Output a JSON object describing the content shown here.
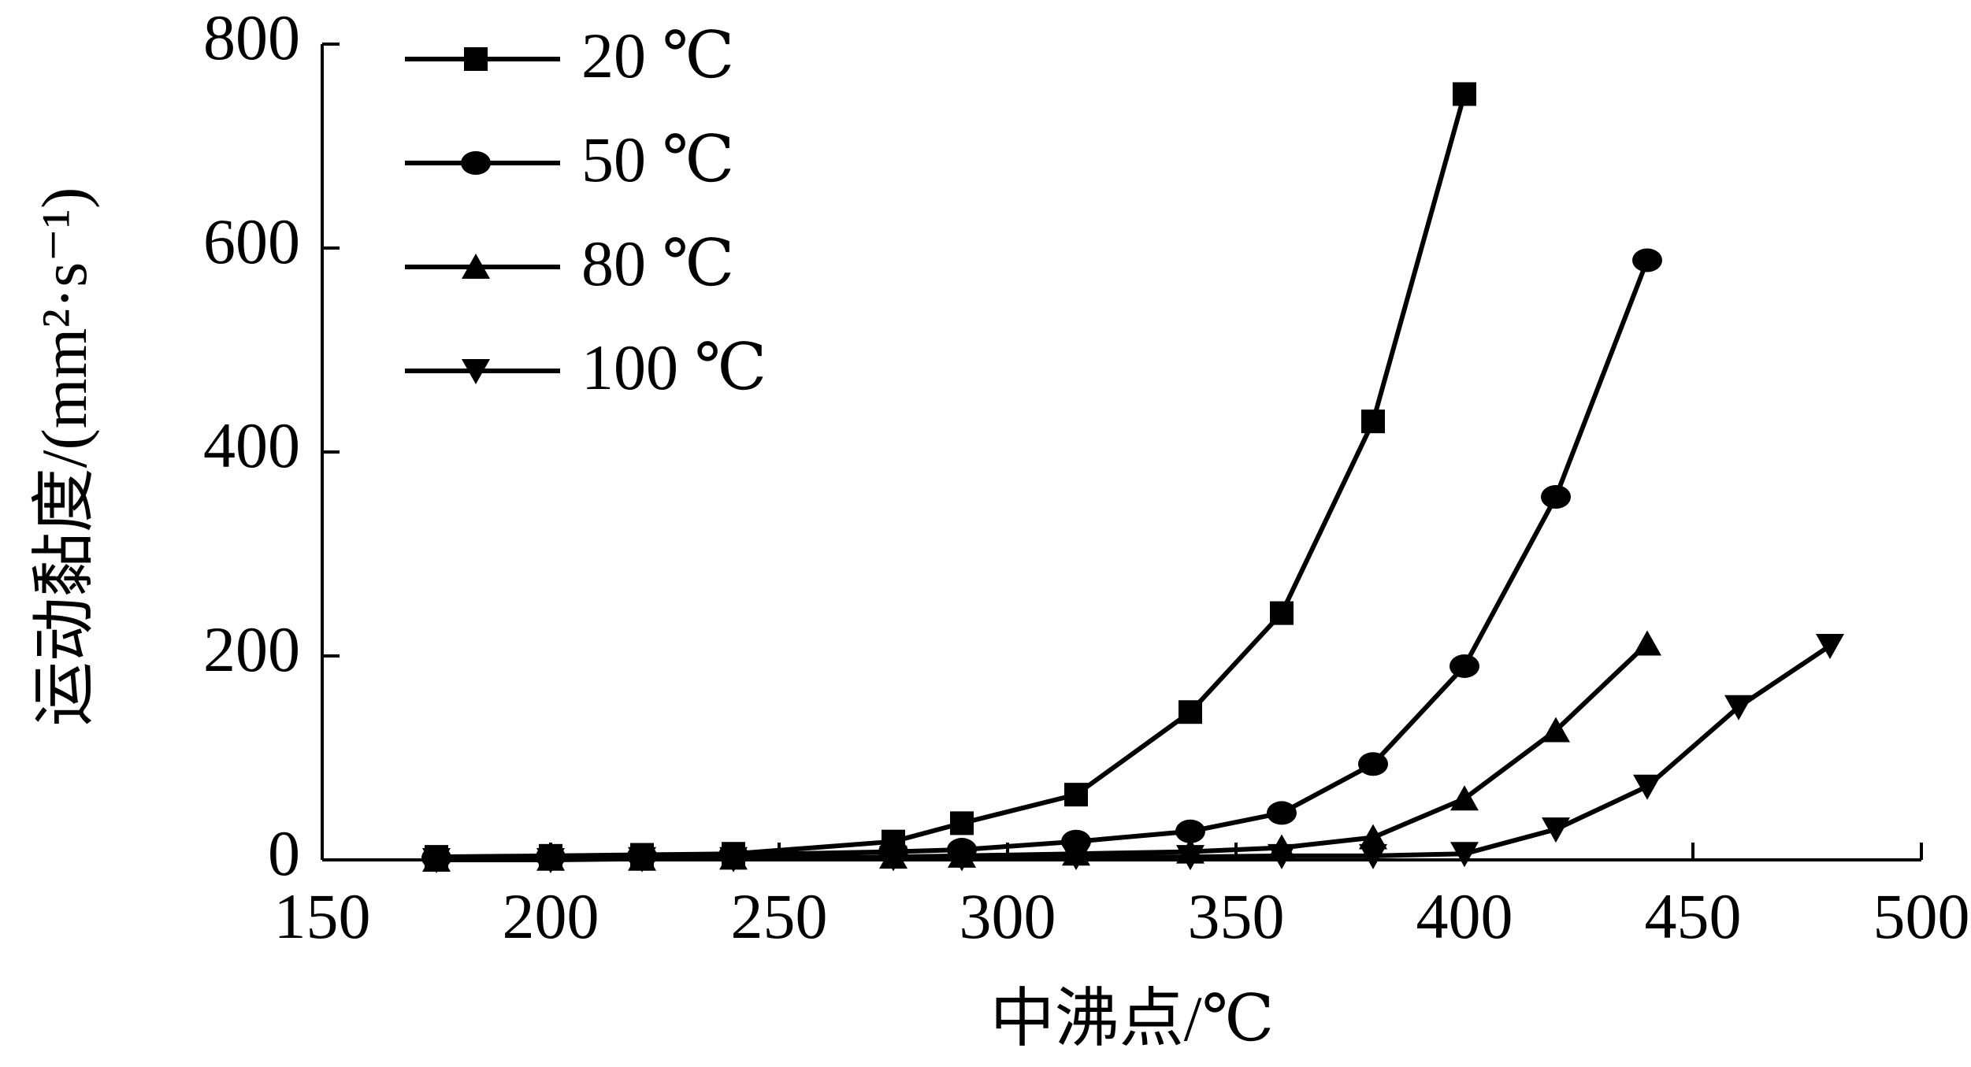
{
  "chart_data": {
    "type": "line",
    "x_label": "中沸点/℃",
    "y_label": "运动黏度/(mm²·s⁻¹)",
    "xlim": [
      150,
      500
    ],
    "xticks": [
      150,
      200,
      250,
      300,
      350,
      400,
      450,
      500
    ],
    "ylim": [
      0,
      800
    ],
    "yticks": [
      0,
      200,
      400,
      600,
      800
    ],
    "legend": "upper-left",
    "series": [
      {
        "name": "20 ℃",
        "color": "#000000",
        "marker": "square",
        "x": [
          175,
          200,
          220,
          240,
          275,
          290,
          315,
          340,
          360,
          380,
          400
        ],
        "values": [
          3,
          4,
          5,
          6,
          18,
          36,
          64,
          145,
          242,
          430,
          751
        ]
      },
      {
        "name": "50 ℃",
        "color": "#000000",
        "marker": "circle",
        "x": [
          175,
          200,
          220,
          240,
          275,
          290,
          315,
          340,
          360,
          380,
          400,
          420,
          440
        ],
        "values": [
          2,
          3,
          4,
          5,
          8,
          10,
          18,
          28,
          46,
          94,
          190,
          356,
          588
        ]
      },
      {
        "name": "80 ℃",
        "color": "#000000",
        "marker": "triangle-up",
        "x": [
          175,
          200,
          220,
          240,
          275,
          290,
          315,
          340,
          360,
          380,
          400,
          420,
          440
        ],
        "values": [
          0,
          1,
          1,
          2,
          3,
          4,
          6,
          8,
          12,
          22,
          60,
          127,
          212
        ]
      },
      {
        "name": "100 ℃",
        "color": "#000000",
        "marker": "triangle-down",
        "x": [
          175,
          200,
          220,
          240,
          275,
          290,
          315,
          340,
          360,
          380,
          400,
          420,
          440,
          460,
          480
        ],
        "values": [
          0,
          0,
          1,
          1,
          2,
          2,
          3,
          3,
          4,
          4,
          6,
          30,
          72,
          150,
          210
        ]
      }
    ]
  }
}
